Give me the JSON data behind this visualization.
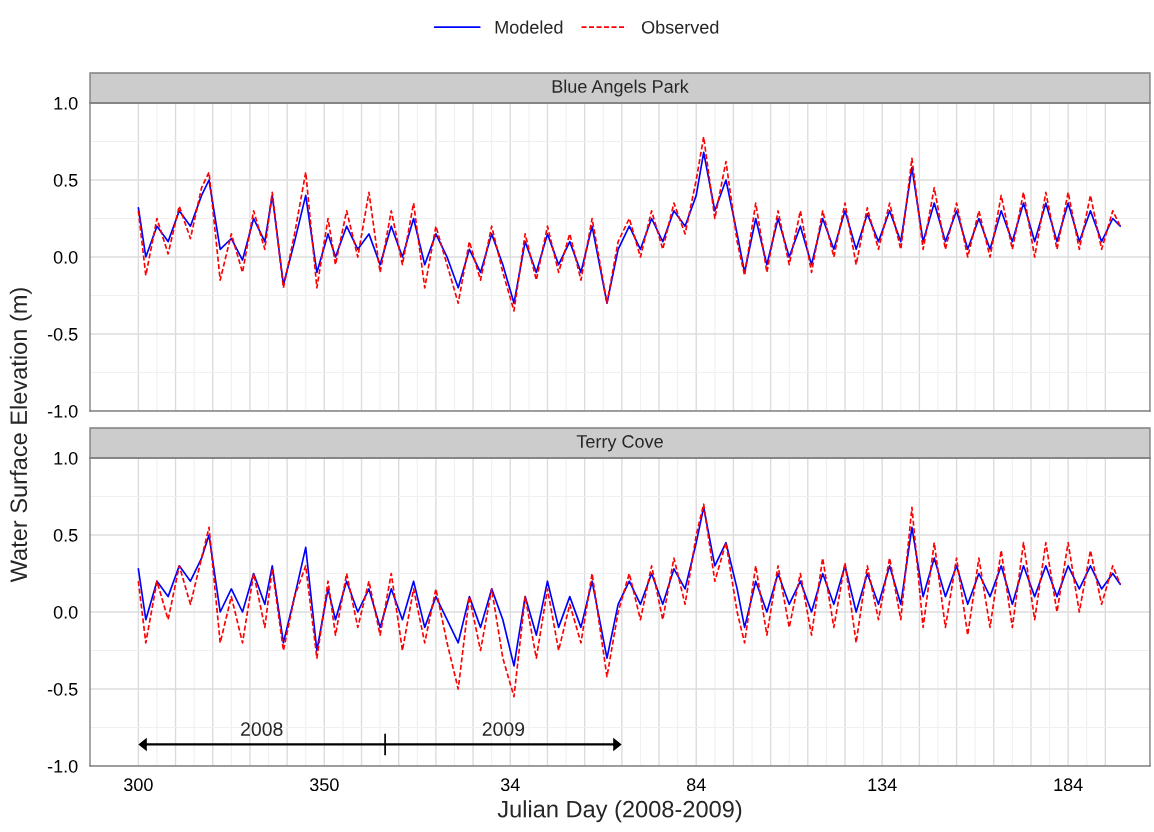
{
  "chart_data": [
    {
      "type": "line",
      "title": "Blue Angels Park",
      "ylabel": "Water Surface Elevation (m)",
      "legend": "top",
      "grid": true,
      "tick_labels": "y",
      "x": [
        "2008-10-26",
        "2008-10-28",
        "2008-10-31",
        "2008-11-03",
        "2008-11-06",
        "2008-11-09",
        "2008-11-12",
        "2008-11-14",
        "2008-11-17",
        "2008-11-20",
        "2008-11-23",
        "2008-11-26",
        "2008-11-29",
        "2008-12-01",
        "2008-12-04",
        "2008-12-07",
        "2008-12-10",
        "2008-12-13",
        "2008-12-16",
        "2008-12-18",
        "2008-12-21",
        "2008-12-24",
        "2008-12-27",
        "2008-12-30",
        "2009-01-02",
        "2009-01-05",
        "2009-01-08",
        "2009-01-11",
        "2009-01-14",
        "2009-01-17",
        "2009-01-20",
        "2009-01-23",
        "2009-01-26",
        "2009-01-29",
        "2009-02-01",
        "2009-02-04",
        "2009-02-07",
        "2009-02-10",
        "2009-02-13",
        "2009-02-16",
        "2009-02-19",
        "2009-02-22",
        "2009-02-25",
        "2009-03-01",
        "2009-03-04",
        "2009-03-07",
        "2009-03-10",
        "2009-03-13",
        "2009-03-16",
        "2009-03-19",
        "2009-03-22",
        "2009-03-25",
        "2009-03-27",
        "2009-03-30",
        "2009-04-02",
        "2009-04-05",
        "2009-04-07",
        "2009-04-10",
        "2009-04-13",
        "2009-04-16",
        "2009-04-19",
        "2009-04-22",
        "2009-04-25",
        "2009-04-28",
        "2009-05-01",
        "2009-05-04",
        "2009-05-07",
        "2009-05-10",
        "2009-05-13",
        "2009-05-16",
        "2009-05-19",
        "2009-05-22",
        "2009-05-25",
        "2009-05-28",
        "2009-05-31",
        "2009-06-03",
        "2009-06-06",
        "2009-06-09",
        "2009-06-12",
        "2009-06-15",
        "2009-06-18",
        "2009-06-21",
        "2009-06-24",
        "2009-06-27",
        "2009-06-30",
        "2009-07-03",
        "2009-07-06",
        "2009-07-09",
        "2009-07-12",
        "2009-07-15",
        "2009-07-17"
      ],
      "series": [
        {
          "name": "Modeled",
          "color": "#0000ff",
          "line_style": "solid",
          "values": [
            0.32,
            0.0,
            0.2,
            0.1,
            0.3,
            0.2,
            0.4,
            0.5,
            0.05,
            0.12,
            -0.02,
            0.25,
            0.1,
            0.4,
            -0.18,
            0.1,
            0.4,
            -0.1,
            0.15,
            0.0,
            0.2,
            0.05,
            0.15,
            -0.05,
            0.2,
            0.0,
            0.25,
            -0.05,
            0.15,
            0.0,
            -0.2,
            0.05,
            -0.1,
            0.15,
            -0.05,
            -0.3,
            0.1,
            -0.1,
            0.15,
            -0.05,
            0.1,
            -0.1,
            0.2,
            -0.3,
            0.05,
            0.2,
            0.05,
            0.25,
            0.1,
            0.3,
            0.2,
            0.4,
            0.68,
            0.3,
            0.5,
            0.15,
            -0.1,
            0.25,
            -0.05,
            0.25,
            0.0,
            0.2,
            -0.05,
            0.25,
            0.05,
            0.3,
            0.05,
            0.28,
            0.1,
            0.3,
            0.1,
            0.58,
            0.1,
            0.35,
            0.1,
            0.3,
            0.05,
            0.25,
            0.05,
            0.3,
            0.1,
            0.35,
            0.1,
            0.35,
            0.1,
            0.35,
            0.1,
            0.3,
            0.1,
            0.25,
            0.2
          ]
        },
        {
          "name": "Observed",
          "color": "#ff0000",
          "line_style": "dashed",
          "values": [
            0.3,
            -0.12,
            0.25,
            0.02,
            0.33,
            0.12,
            0.45,
            0.55,
            -0.15,
            0.15,
            -0.1,
            0.3,
            0.05,
            0.42,
            -0.2,
            0.15,
            0.55,
            -0.2,
            0.25,
            -0.05,
            0.3,
            0.0,
            0.42,
            -0.1,
            0.3,
            -0.05,
            0.35,
            -0.2,
            0.2,
            -0.05,
            -0.3,
            0.1,
            -0.15,
            0.2,
            -0.1,
            -0.35,
            0.15,
            -0.15,
            0.2,
            -0.1,
            0.15,
            -0.15,
            0.25,
            -0.3,
            0.1,
            0.25,
            0.0,
            0.3,
            0.05,
            0.35,
            0.15,
            0.5,
            0.78,
            0.25,
            0.62,
            0.1,
            -0.12,
            0.35,
            -0.1,
            0.3,
            -0.05,
            0.3,
            -0.1,
            0.3,
            0.0,
            0.35,
            -0.05,
            0.32,
            0.05,
            0.35,
            0.05,
            0.64,
            0.05,
            0.45,
            0.05,
            0.35,
            0.0,
            0.3,
            0.0,
            0.4,
            0.05,
            0.42,
            0.0,
            0.42,
            0.05,
            0.42,
            0.05,
            0.4,
            0.05,
            0.3,
            0.2
          ]
        }
      ],
      "xlim": [
        "2008-10-13",
        "2009-07-25"
      ],
      "ylim": [
        -1.0,
        1.0
      ],
      "xticks": [
        {
          "value": "2008-10-26",
          "label": null
        },
        {
          "value": "2008-11-05",
          "label": null
        },
        {
          "value": "2008-11-15",
          "label": null
        },
        {
          "value": "2008-11-25",
          "label": null
        },
        {
          "value": "2008-12-05",
          "label": null
        },
        {
          "value": "2008-12-15",
          "label": null
        },
        {
          "value": "2008-12-25",
          "label": null
        },
        {
          "value": "2009-01-04",
          "label": null
        },
        {
          "value": "2009-01-14",
          "label": null
        },
        {
          "value": "2009-01-24",
          "label": null
        },
        {
          "value": "2009-02-03",
          "label": null
        },
        {
          "value": "2009-02-13",
          "label": null
        },
        {
          "value": "2009-02-23",
          "label": null
        },
        {
          "value": "2009-03-05",
          "label": null
        },
        {
          "value": "2009-03-15",
          "label": null
        },
        {
          "value": "2009-03-25",
          "label": null
        },
        {
          "value": "2009-04-04",
          "label": null
        },
        {
          "value": "2009-04-14",
          "label": null
        },
        {
          "value": "2009-04-24",
          "label": null
        },
        {
          "value": "2009-05-04",
          "label": null
        },
        {
          "value": "2009-05-14",
          "label": null
        },
        {
          "value": "2009-05-24",
          "label": null
        },
        {
          "value": "2009-06-03",
          "label": null
        },
        {
          "value": "2009-06-13",
          "label": null
        },
        {
          "value": "2009-06-23",
          "label": null
        },
        {
          "value": "2009-07-03",
          "label": null
        },
        {
          "value": "2009-07-13",
          "label": null
        }
      ],
      "yticks": [
        {
          "value": -1.0,
          "label": "-1.0"
        },
        {
          "value": -0.5,
          "label": "-0.5"
        },
        {
          "value": 0.0,
          "label": "0.0"
        },
        {
          "value": 0.5,
          "label": "0.5"
        },
        {
          "value": 1.0,
          "label": "1.0"
        }
      ]
    },
    {
      "type": "line",
      "title": "Terry Cove",
      "xlabel": "Julian Day (2008-2009)",
      "grid": true,
      "x": [
        "2008-10-26",
        "2008-10-28",
        "2008-10-31",
        "2008-11-03",
        "2008-11-06",
        "2008-11-09",
        "2008-11-12",
        "2008-11-14",
        "2008-11-17",
        "2008-11-20",
        "2008-11-23",
        "2008-11-26",
        "2008-11-29",
        "2008-12-01",
        "2008-12-04",
        "2008-12-07",
        "2008-12-10",
        "2008-12-13",
        "2008-12-16",
        "2008-12-18",
        "2008-12-21",
        "2008-12-24",
        "2008-12-27",
        "2008-12-30",
        "2009-01-02",
        "2009-01-05",
        "2009-01-08",
        "2009-01-11",
        "2009-01-14",
        "2009-01-17",
        "2009-01-20",
        "2009-01-23",
        "2009-01-26",
        "2009-01-29",
        "2009-02-01",
        "2009-02-04",
        "2009-02-07",
        "2009-02-10",
        "2009-02-13",
        "2009-02-16",
        "2009-02-19",
        "2009-02-22",
        "2009-02-25",
        "2009-03-01",
        "2009-03-04",
        "2009-03-07",
        "2009-03-10",
        "2009-03-13",
        "2009-03-16",
        "2009-03-19",
        "2009-03-22",
        "2009-03-25",
        "2009-03-27",
        "2009-03-30",
        "2009-04-02",
        "2009-04-05",
        "2009-04-07",
        "2009-04-10",
        "2009-04-13",
        "2009-04-16",
        "2009-04-19",
        "2009-04-22",
        "2009-04-25",
        "2009-04-28",
        "2009-05-01",
        "2009-05-04",
        "2009-05-07",
        "2009-05-10",
        "2009-05-13",
        "2009-05-16",
        "2009-05-19",
        "2009-05-22",
        "2009-05-25",
        "2009-05-28",
        "2009-05-31",
        "2009-06-03",
        "2009-06-06",
        "2009-06-09",
        "2009-06-12",
        "2009-06-15",
        "2009-06-18",
        "2009-06-21",
        "2009-06-24",
        "2009-06-27",
        "2009-06-30",
        "2009-07-03",
        "2009-07-06",
        "2009-07-09",
        "2009-07-12",
        "2009-07-15",
        "2009-07-17"
      ],
      "series": [
        {
          "color": "#0000ff",
          "line_style": "solid",
          "values": [
            0.28,
            -0.05,
            0.2,
            0.1,
            0.3,
            0.2,
            0.35,
            0.5,
            0.0,
            0.15,
            0.0,
            0.25,
            0.05,
            0.3,
            -0.2,
            0.1,
            0.42,
            -0.25,
            0.15,
            -0.05,
            0.2,
            0.0,
            0.15,
            -0.1,
            0.15,
            -0.05,
            0.2,
            -0.1,
            0.1,
            -0.05,
            -0.2,
            0.1,
            -0.1,
            0.15,
            -0.05,
            -0.35,
            0.1,
            -0.15,
            0.2,
            -0.1,
            0.1,
            -0.1,
            0.2,
            -0.3,
            0.05,
            0.2,
            0.05,
            0.25,
            0.05,
            0.28,
            0.15,
            0.45,
            0.68,
            0.3,
            0.45,
            0.15,
            -0.1,
            0.2,
            0.0,
            0.25,
            0.05,
            0.2,
            0.0,
            0.25,
            0.05,
            0.3,
            0.0,
            0.25,
            0.05,
            0.3,
            0.05,
            0.55,
            0.1,
            0.35,
            0.1,
            0.3,
            0.05,
            0.25,
            0.1,
            0.3,
            0.05,
            0.3,
            0.1,
            0.3,
            0.1,
            0.3,
            0.15,
            0.3,
            0.15,
            0.25,
            0.18
          ]
        },
        {
          "color": "#ff0000",
          "line_style": "dashed",
          "values": [
            0.2,
            -0.2,
            0.2,
            -0.05,
            0.3,
            0.05,
            0.35,
            0.55,
            -0.2,
            0.1,
            -0.2,
            0.25,
            -0.1,
            0.28,
            -0.25,
            0.1,
            0.3,
            -0.3,
            0.2,
            -0.15,
            0.25,
            -0.1,
            0.2,
            -0.15,
            0.25,
            -0.25,
            0.15,
            -0.2,
            0.15,
            -0.2,
            -0.5,
            0.1,
            -0.25,
            0.15,
            -0.3,
            -0.55,
            0.1,
            -0.3,
            0.15,
            -0.25,
            0.05,
            -0.2,
            0.25,
            -0.42,
            0.0,
            0.25,
            -0.05,
            0.3,
            -0.05,
            0.35,
            0.05,
            0.5,
            0.7,
            0.2,
            0.45,
            0.0,
            -0.2,
            0.3,
            -0.15,
            0.3,
            -0.1,
            0.25,
            -0.15,
            0.35,
            -0.1,
            0.32,
            -0.2,
            0.3,
            -0.05,
            0.35,
            -0.05,
            0.68,
            -0.1,
            0.45,
            -0.1,
            0.35,
            -0.15,
            0.35,
            -0.1,
            0.4,
            -0.1,
            0.45,
            -0.05,
            0.45,
            0.0,
            0.45,
            0.0,
            0.4,
            0.05,
            0.3,
            0.18
          ]
        }
      ],
      "annotations": [
        "2008",
        "2009"
      ],
      "xlim": [
        "2008-10-13",
        "2009-07-25"
      ],
      "ylim": [
        -1.0,
        1.0
      ],
      "xticks": [
        {
          "value": "2008-10-26",
          "label": "300"
        },
        {
          "value": "2008-11-05",
          "label": null
        },
        {
          "value": "2008-11-15",
          "label": null
        },
        {
          "value": "2008-11-25",
          "label": null
        },
        {
          "value": "2008-12-05",
          "label": null
        },
        {
          "value": "2008-12-15",
          "label": "350"
        },
        {
          "value": "2008-12-25",
          "label": null
        },
        {
          "value": "2009-01-04",
          "label": null
        },
        {
          "value": "2009-01-14",
          "label": null
        },
        {
          "value": "2009-01-24",
          "label": null
        },
        {
          "value": "2009-02-03",
          "label": "34"
        },
        {
          "value": "2009-02-13",
          "label": null
        },
        {
          "value": "2009-02-23",
          "label": null
        },
        {
          "value": "2009-03-05",
          "label": null
        },
        {
          "value": "2009-03-15",
          "label": null
        },
        {
          "value": "2009-03-25",
          "label": "84"
        },
        {
          "value": "2009-04-04",
          "label": null
        },
        {
          "value": "2009-04-14",
          "label": null
        },
        {
          "value": "2009-04-24",
          "label": null
        },
        {
          "value": "2009-05-04",
          "label": null
        },
        {
          "value": "2009-05-14",
          "label": "134"
        },
        {
          "value": "2009-05-24",
          "label": null
        },
        {
          "value": "2009-06-03",
          "label": null
        },
        {
          "value": "2009-06-13",
          "label": null
        },
        {
          "value": "2009-06-23",
          "label": null
        },
        {
          "value": "2009-07-03",
          "label": "184"
        },
        {
          "value": "2009-07-13",
          "label": null
        }
      ],
      "yticks": [
        {
          "value": -1.0,
          "label": "-1.0"
        },
        {
          "value": -0.5,
          "label": "-0.5"
        },
        {
          "value": 0.0,
          "label": "0.0"
        },
        {
          "value": 0.5,
          "label": "0.5"
        },
        {
          "value": 1.0,
          "label": "1.0"
        }
      ]
    }
  ]
}
